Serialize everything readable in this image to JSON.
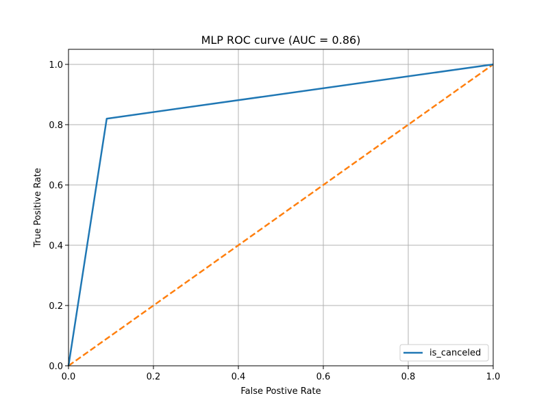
{
  "chart_data": {
    "type": "line",
    "title": "MLP ROC curve (AUC = 0.86)",
    "xlabel": "False Postive Rate",
    "ylabel": "True Positive Rate",
    "xlim": [
      0.0,
      1.0
    ],
    "ylim": [
      0.0,
      1.05
    ],
    "x_ticks": [
      "0.0",
      "0.2",
      "0.4",
      "0.6",
      "0.8",
      "1.0"
    ],
    "y_ticks": [
      "0.0",
      "0.2",
      "0.4",
      "0.6",
      "0.8",
      "1.0"
    ],
    "grid": true,
    "legend_position": "lower-right",
    "series": [
      {
        "name": "is_canceled",
        "color": "#1f77b4",
        "style": "solid",
        "x": [
          0.0,
          0.09,
          1.0
        ],
        "y": [
          0.0,
          0.82,
          1.0
        ]
      },
      {
        "color": "#ff7f0e",
        "style": "dashed",
        "x": [
          0.0,
          1.0
        ],
        "y": [
          0.0,
          1.0
        ]
      }
    ]
  }
}
